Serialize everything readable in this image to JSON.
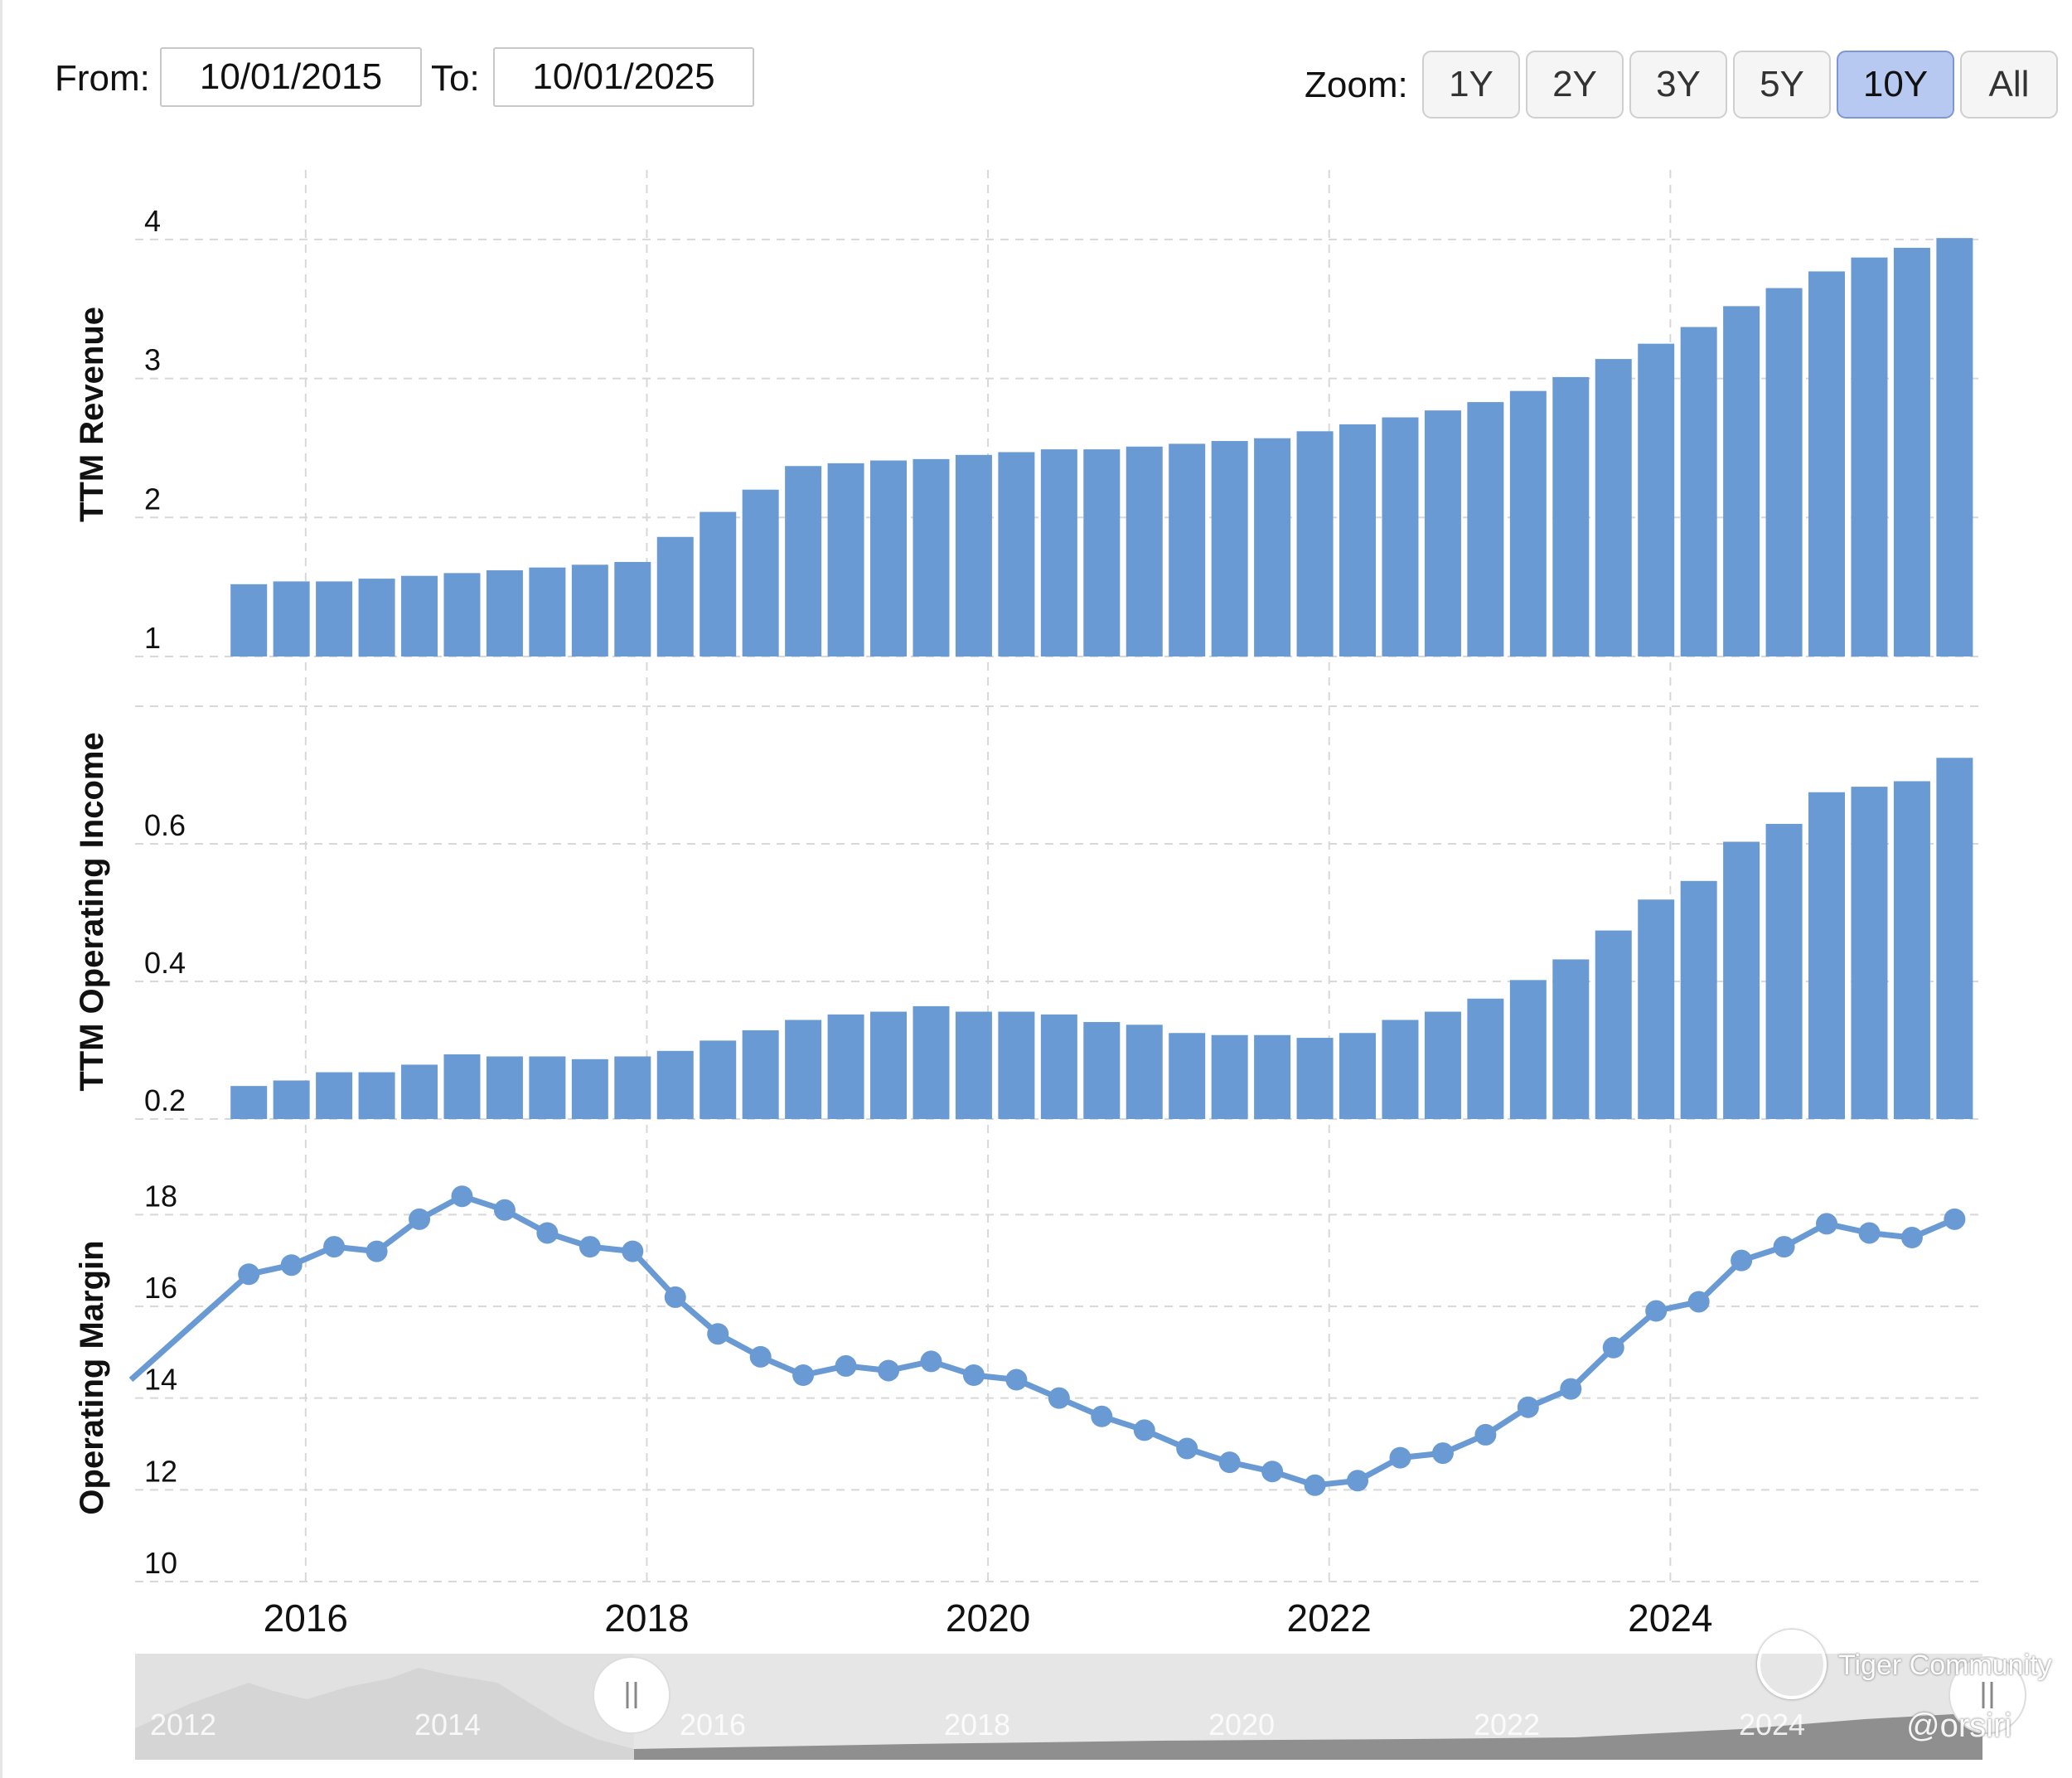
{
  "toolbar": {
    "from_label": "From:",
    "from_value": "10/01/2015",
    "to_label": "To:",
    "to_value": "10/01/2025",
    "zoom_label": "Zoom:",
    "zoom_options": [
      "1Y",
      "2Y",
      "3Y",
      "5Y",
      "10Y",
      "All"
    ],
    "zoom_active": "10Y"
  },
  "colors": {
    "series": "#6a9ad3",
    "grid": "#d8d8d8",
    "navigator_bg": "#e6e6e6",
    "navigator_area": "#8f8f8f"
  },
  "navigator": {
    "year_labels": [
      "2012",
      "2014",
      "2016",
      "2018",
      "2020",
      "2022",
      "2024"
    ]
  },
  "watermark": {
    "brand": "Tiger Community",
    "handle": "@orsiri"
  },
  "chart_data": [
    {
      "type": "bar",
      "ylabel": "TTM Revenue",
      "ylim": [
        1,
        4.5
      ],
      "yticks": [
        "1",
        "2",
        "3",
        "4"
      ],
      "xticks": [
        "2016",
        "2018",
        "2020",
        "2022",
        "2024"
      ],
      "x": [
        "2015-09",
        "2015-12",
        "2016-03",
        "2016-06",
        "2016-09",
        "2016-12",
        "2017-03",
        "2017-06",
        "2017-09",
        "2017-12",
        "2018-03",
        "2018-06",
        "2018-09",
        "2018-12",
        "2019-03",
        "2019-06",
        "2019-09",
        "2019-12",
        "2020-03",
        "2020-06",
        "2020-09",
        "2020-12",
        "2021-03",
        "2021-06",
        "2021-09",
        "2021-12",
        "2022-03",
        "2022-06",
        "2022-09",
        "2022-12",
        "2023-03",
        "2023-06",
        "2023-09",
        "2023-12",
        "2024-03",
        "2024-06",
        "2024-09",
        "2024-12",
        "2025-03",
        "2025-06",
        "2025-09"
      ],
      "values": [
        1.52,
        1.54,
        1.54,
        1.56,
        1.58,
        1.6,
        1.62,
        1.64,
        1.66,
        1.68,
        1.86,
        2.04,
        2.2,
        2.37,
        2.39,
        2.41,
        2.42,
        2.45,
        2.47,
        2.49,
        2.49,
        2.51,
        2.53,
        2.55,
        2.57,
        2.62,
        2.67,
        2.72,
        2.77,
        2.83,
        2.91,
        3.01,
        3.14,
        3.25,
        3.37,
        3.52,
        3.65,
        3.77,
        3.87,
        3.94,
        4.01
      ]
    },
    {
      "type": "bar",
      "ylabel": "TTM Operating Income",
      "ylim": [
        0.2,
        0.8
      ],
      "yticks": [
        "0.2",
        "0.4",
        "0.6"
      ],
      "xticks": [
        "2016",
        "2018",
        "2020",
        "2022",
        "2024"
      ],
      "x": [
        "2015-09",
        "2015-12",
        "2016-03",
        "2016-06",
        "2016-09",
        "2016-12",
        "2017-03",
        "2017-06",
        "2017-09",
        "2017-12",
        "2018-03",
        "2018-06",
        "2018-09",
        "2018-12",
        "2019-03",
        "2019-06",
        "2019-09",
        "2019-12",
        "2020-03",
        "2020-06",
        "2020-09",
        "2020-12",
        "2021-03",
        "2021-06",
        "2021-09",
        "2021-12",
        "2022-03",
        "2022-06",
        "2022-09",
        "2022-12",
        "2023-03",
        "2023-06",
        "2023-09",
        "2023-12",
        "2024-03",
        "2024-06",
        "2024-09",
        "2024-12",
        "2025-03",
        "2025-06",
        "2025-09"
      ],
      "values": [
        0.248,
        0.256,
        0.268,
        0.268,
        0.279,
        0.294,
        0.291,
        0.291,
        0.287,
        0.291,
        0.299,
        0.314,
        0.329,
        0.344,
        0.352,
        0.356,
        0.364,
        0.356,
        0.356,
        0.352,
        0.341,
        0.337,
        0.325,
        0.322,
        0.322,
        0.318,
        0.325,
        0.344,
        0.356,
        0.375,
        0.402,
        0.432,
        0.474,
        0.519,
        0.546,
        0.603,
        0.629,
        0.675,
        0.683,
        0.691,
        0.725
      ]
    },
    {
      "type": "line",
      "ylabel": "Operating Margin",
      "ylim": [
        10,
        19
      ],
      "yticks": [
        "10",
        "12",
        "14",
        "16",
        "18"
      ],
      "xticks": [
        "2016",
        "2018",
        "2020",
        "2022",
        "2024"
      ],
      "x": [
        "2015-09",
        "2015-12",
        "2016-03",
        "2016-06",
        "2016-09",
        "2016-12",
        "2017-03",
        "2017-06",
        "2017-09",
        "2017-12",
        "2018-03",
        "2018-06",
        "2018-09",
        "2018-12",
        "2019-03",
        "2019-06",
        "2019-09",
        "2019-12",
        "2020-03",
        "2020-06",
        "2020-09",
        "2020-12",
        "2021-03",
        "2021-06",
        "2021-09",
        "2021-12",
        "2022-03",
        "2022-06",
        "2022-09",
        "2022-12",
        "2023-03",
        "2023-06",
        "2023-09",
        "2023-12",
        "2024-03",
        "2024-06",
        "2024-09",
        "2024-12",
        "2025-03",
        "2025-06",
        "2025-09"
      ],
      "values": [
        16.7,
        16.9,
        17.3,
        17.2,
        17.9,
        18.4,
        18.1,
        17.6,
        17.3,
        17.2,
        16.2,
        15.4,
        14.9,
        14.5,
        14.7,
        14.6,
        14.8,
        14.5,
        14.4,
        14.0,
        13.6,
        13.3,
        12.9,
        12.6,
        12.4,
        12.1,
        12.2,
        12.7,
        12.8,
        13.2,
        13.8,
        14.2,
        15.1,
        15.9,
        16.1,
        17.0,
        17.3,
        17.8,
        17.6,
        17.5,
        17.9
      ]
    }
  ]
}
